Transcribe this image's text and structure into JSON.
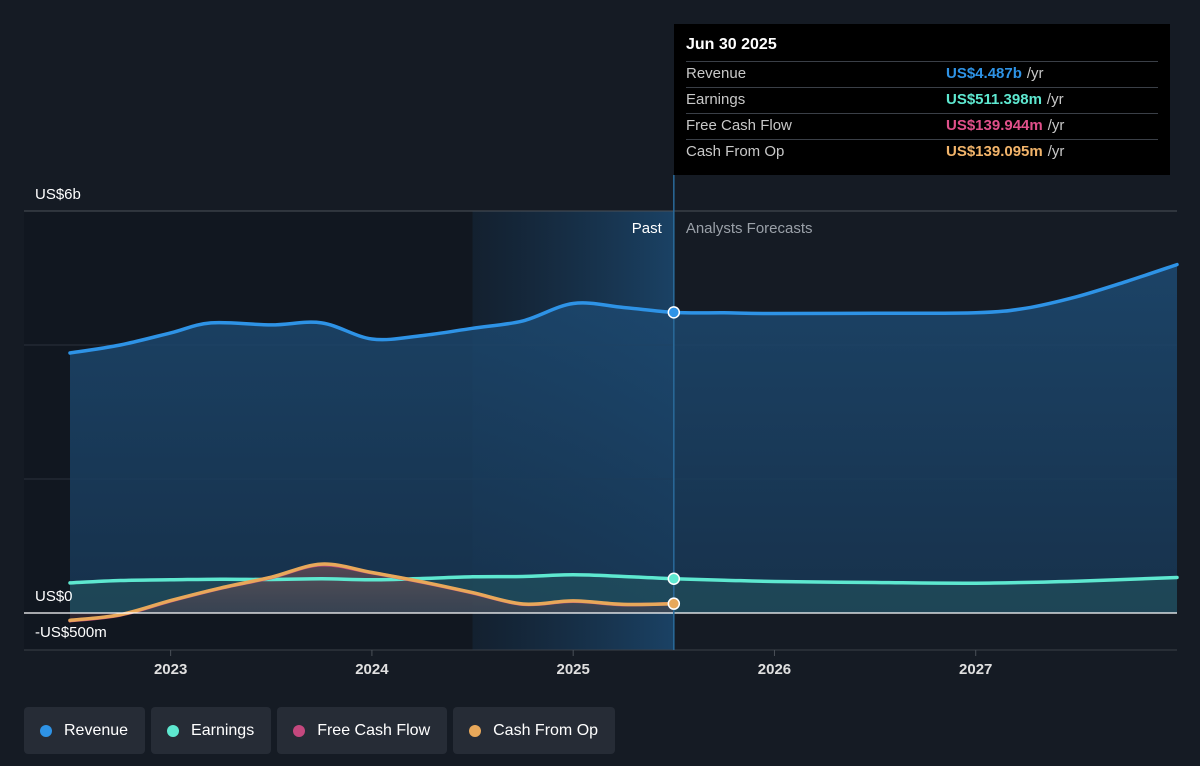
{
  "tooltip": {
    "date": "Jun 30 2025",
    "rows": [
      {
        "label": "Revenue",
        "value": "US$4.487b",
        "unit": "/yr",
        "color": "#2e93e6"
      },
      {
        "label": "Earnings",
        "value": "US$511.398m",
        "unit": "/yr",
        "color": "#5ee8d0"
      },
      {
        "label": "Free Cash Flow",
        "value": "US$139.944m",
        "unit": "/yr",
        "color": "#e0508a"
      },
      {
        "label": "Cash From Op",
        "value": "US$139.095m",
        "unit": "/yr",
        "color": "#f2b46a"
      }
    ]
  },
  "legend": [
    {
      "label": "Revenue",
      "color": "#2e93e6"
    },
    {
      "label": "Earnings",
      "color": "#5ee8d0"
    },
    {
      "label": "Free Cash Flow",
      "color": "#c4487e"
    },
    {
      "label": "Cash From Op",
      "color": "#e8a85a"
    }
  ],
  "chart_data": {
    "type": "line",
    "y_tick_labels": [
      "US$6b",
      "US$0",
      "-US$500m"
    ],
    "ylim": [
      -500,
      6000
    ],
    "y_unit": "US$m",
    "x_tick_labels": [
      "2023",
      "2024",
      "2025",
      "2026",
      "2027"
    ],
    "xlim": [
      2022.5,
      2028.0
    ],
    "past_label": "Past",
    "forecast_label": "Analysts Forecasts",
    "divider_x": 2025.5,
    "highlight_start_x": 2024.5,
    "series": [
      {
        "name": "Revenue",
        "color": "#2e93e6",
        "fill": true,
        "points": [
          [
            2022.5,
            3880
          ],
          [
            2022.75,
            4000
          ],
          [
            2023.0,
            4180
          ],
          [
            2023.2,
            4330
          ],
          [
            2023.5,
            4300
          ],
          [
            2023.75,
            4330
          ],
          [
            2024.0,
            4090
          ],
          [
            2024.25,
            4140
          ],
          [
            2024.5,
            4250
          ],
          [
            2024.75,
            4360
          ],
          [
            2025.0,
            4620
          ],
          [
            2025.25,
            4560
          ],
          [
            2025.5,
            4487
          ],
          [
            2025.75,
            4480
          ],
          [
            2026.0,
            4470
          ],
          [
            2026.5,
            4475
          ],
          [
            2027.0,
            4480
          ],
          [
            2027.25,
            4550
          ],
          [
            2027.5,
            4720
          ],
          [
            2027.75,
            4950
          ],
          [
            2028.0,
            5200
          ]
        ]
      },
      {
        "name": "Earnings",
        "color": "#5ee8d0",
        "fill": true,
        "points": [
          [
            2022.5,
            450
          ],
          [
            2022.75,
            485
          ],
          [
            2023.0,
            495
          ],
          [
            2023.25,
            505
          ],
          [
            2023.5,
            500
          ],
          [
            2023.75,
            510
          ],
          [
            2024.0,
            495
          ],
          [
            2024.25,
            515
          ],
          [
            2024.5,
            540
          ],
          [
            2024.75,
            545
          ],
          [
            2025.0,
            570
          ],
          [
            2025.25,
            545
          ],
          [
            2025.5,
            511
          ],
          [
            2025.75,
            490
          ],
          [
            2026.0,
            470
          ],
          [
            2026.5,
            455
          ],
          [
            2027.0,
            445
          ],
          [
            2027.5,
            475
          ],
          [
            2028.0,
            530
          ]
        ]
      },
      {
        "name": "Free Cash Flow",
        "color": "#c4487e",
        "fill": false,
        "points": [
          [
            2022.5,
            -115
          ],
          [
            2022.75,
            -30
          ],
          [
            2023.0,
            180
          ],
          [
            2023.25,
            370
          ],
          [
            2023.5,
            530
          ],
          [
            2023.75,
            720
          ],
          [
            2024.0,
            600
          ],
          [
            2024.25,
            460
          ],
          [
            2024.5,
            300
          ],
          [
            2024.75,
            130
          ],
          [
            2025.0,
            175
          ],
          [
            2025.25,
            125
          ],
          [
            2025.5,
            140
          ]
        ]
      },
      {
        "name": "Cash From Op",
        "color": "#e8a85a",
        "fill": true,
        "points": [
          [
            2022.5,
            -110
          ],
          [
            2022.75,
            -25
          ],
          [
            2023.0,
            185
          ],
          [
            2023.25,
            375
          ],
          [
            2023.5,
            535
          ],
          [
            2023.75,
            730
          ],
          [
            2024.0,
            605
          ],
          [
            2024.25,
            465
          ],
          [
            2024.5,
            305
          ],
          [
            2024.75,
            135
          ],
          [
            2025.0,
            180
          ],
          [
            2025.25,
            128
          ],
          [
            2025.5,
            139
          ]
        ]
      }
    ]
  }
}
